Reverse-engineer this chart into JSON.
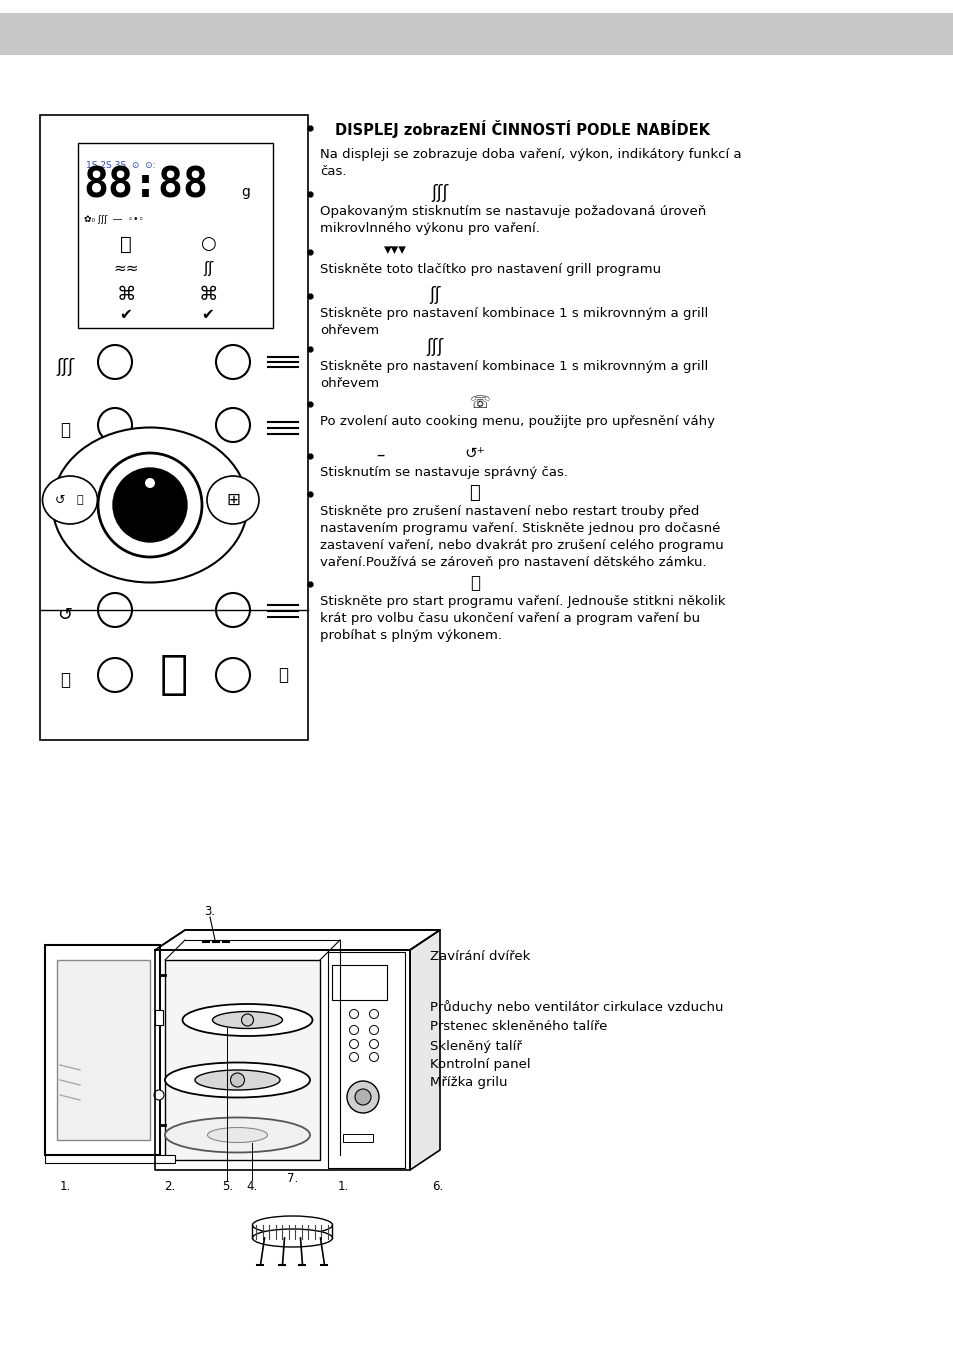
{
  "bg_color": "#ffffff",
  "header_bg": "#c8c8c8",
  "title_bold": "DISPLEJ zobrazENÍ ČINNOSTÍ PODLE NABÍDEK",
  "para1": "Na displeji se zobrazuje doba vaření, výkon, indikátory funkcí a čas.",
  "bullet_text1": "Opakovaným stisknutím se nastavuje požadovaná úroveň\nmikrovlnného výkonu pro vaření.",
  "bullet_text2": "Stiskněte toto tlačítko pro nastavení grill programu",
  "bullet_text3": "Stiskněte pro nastavení kombinace 1 s mikrovnným a grill\nohřevem",
  "bullet_text4": "Stiskněte pro nastavení kombinace 1 s mikrovnným a grill\nohřevem",
  "bullet_text5": "Po zvolení auto cooking menu, použijte pro upřesnění váhy",
  "bullet_text6": "Stisknutím se nastavuje správný čas.",
  "bullet_text7": "Stiskněte pro zrušení nastavení nebo restart trouby před\nnastavením programu vaření. Stiskněte jednou pro dočasné\nzastavení vaření, nebo dvakrát pro zrušení celého programu\nvaření.Používá se zároveň pro nastavení dětského zámku.",
  "bullet_text8": "Stiskněte pro start programu vaření. Jednouše stitkni několik\nkrát pro volbu času ukončení vaření a program vaření bu\nprobíhat s plným výkonem.",
  "bottom_label1": "Zavírání dvířek",
  "bottom_label2": "Průduchy nebo ventilátor cirkulace vzduchu",
  "bottom_label3": "Prstenec skleněného talíře",
  "bottom_label4": "Skleněný talíř",
  "bottom_label5": "Kontrolní panel",
  "bottom_label6": "Mřížka grilu"
}
